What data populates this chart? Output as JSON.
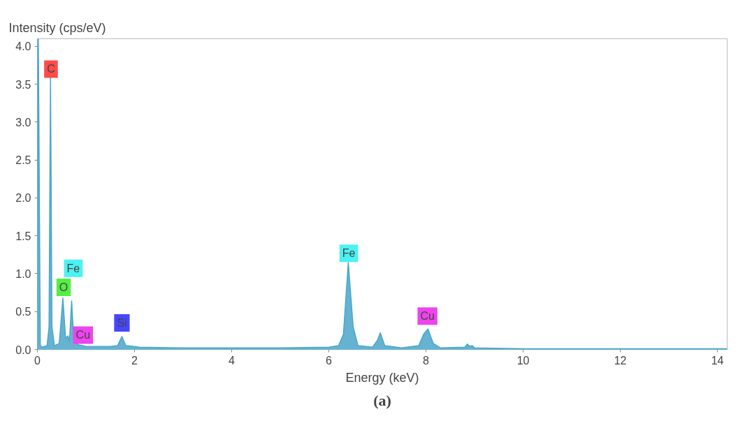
{
  "chart_data": {
    "type": "area",
    "xlabel": "Energy (keV)",
    "ylabel": "Intensity (cps/eV)",
    "series": [
      {
        "color": "#4aa6c9",
        "x": [
          0.0,
          0.02,
          0.06,
          0.1,
          0.2,
          0.24,
          0.27,
          0.3,
          0.35,
          0.45,
          0.525,
          0.58,
          0.63,
          0.66,
          0.705,
          0.75,
          0.85,
          0.93,
          1.0,
          1.2,
          1.5,
          1.65,
          1.74,
          1.82,
          2.0,
          2.1,
          3.0,
          4.0,
          5.0,
          6.0,
          6.2,
          6.3,
          6.4,
          6.5,
          6.6,
          6.9,
          7.0,
          7.06,
          7.15,
          7.5,
          7.85,
          7.95,
          8.04,
          8.15,
          8.3,
          8.8,
          8.85,
          8.9,
          8.95,
          9.0,
          10.0,
          12.0,
          14.2
        ],
        "values": [
          0.0,
          4.1,
          0.05,
          0.03,
          0.05,
          0.3,
          3.6,
          0.3,
          0.05,
          0.08,
          0.68,
          0.15,
          0.18,
          0.1,
          0.64,
          0.12,
          0.06,
          0.05,
          0.04,
          0.04,
          0.04,
          0.05,
          0.17,
          0.05,
          0.04,
          0.03,
          0.02,
          0.02,
          0.02,
          0.03,
          0.05,
          0.2,
          1.15,
          0.3,
          0.05,
          0.03,
          0.12,
          0.22,
          0.05,
          0.02,
          0.05,
          0.2,
          0.27,
          0.08,
          0.02,
          0.03,
          0.07,
          0.04,
          0.05,
          0.02,
          0.01,
          0.01,
          0.01
        ]
      }
    ],
    "xlim": [
      0,
      14.2
    ],
    "ylim": [
      0,
      4.1
    ],
    "xticks": [
      0,
      2,
      4,
      6,
      8,
      10,
      12,
      14
    ],
    "yticks": [
      {
        "value": 0,
        "label": "0.0"
      },
      {
        "value": 0.5,
        "label": "0.5"
      },
      {
        "value": 1,
        "label": "1.0"
      },
      {
        "value": 1.5,
        "label": "1.5"
      },
      {
        "value": 2,
        "label": "2.0"
      },
      {
        "value": 2.5,
        "label": "2.5"
      },
      {
        "value": 3,
        "label": "3.0"
      },
      {
        "value": 3.5,
        "label": "3.5"
      },
      {
        "value": 4,
        "label": "4.0"
      }
    ],
    "grid": false,
    "annotations": [
      {
        "text": "C",
        "x": 0.28,
        "y": 3.7
      },
      {
        "text": "Fe",
        "x": 0.74,
        "y": 1.07
      },
      {
        "text": "O",
        "x": 0.54,
        "y": 0.82
      },
      {
        "text": "Cu",
        "x": 0.94,
        "y": 0.19
      },
      {
        "text": "Si",
        "x": 1.74,
        "y": 0.35
      },
      {
        "text": "Fe",
        "x": 6.41,
        "y": 1.27
      },
      {
        "text": "Cu",
        "x": 8.03,
        "y": 0.44
      },
      "(a)"
    ]
  }
}
